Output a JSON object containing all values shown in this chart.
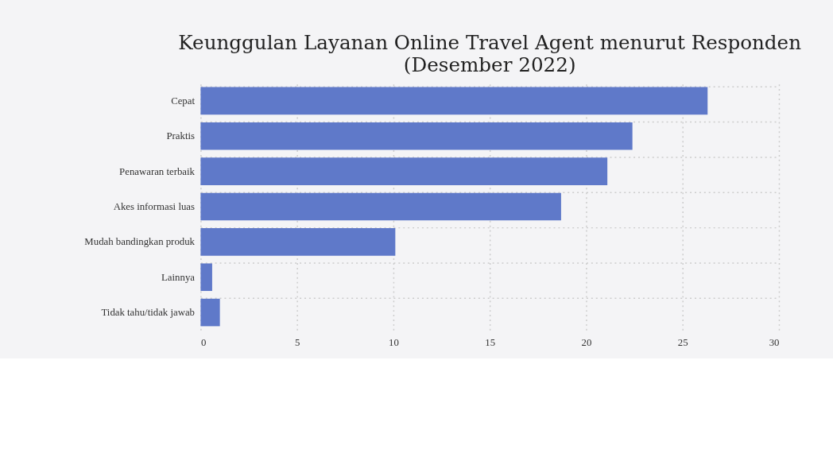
{
  "chart_data": {
    "type": "bar",
    "orientation": "horizontal",
    "title": "Keunggulan Layanan Online Travel Agent menurut Responden",
    "subtitle": "(Desember 2022)",
    "categories": [
      "Cepat",
      "Praktis",
      "Penawaran terbaik",
      "Akes informasi luas",
      "Mudah bandingkan produk",
      "Lainnya",
      "Tidak tahu/tidak jawab"
    ],
    "values": [
      26.3,
      22.4,
      21.1,
      18.7,
      10.1,
      0.6,
      1.0
    ],
    "color": "#5f79c9",
    "xlim": [
      0,
      30
    ],
    "xticks": [
      0,
      5,
      10,
      15,
      20,
      25,
      30
    ],
    "grid": true
  }
}
